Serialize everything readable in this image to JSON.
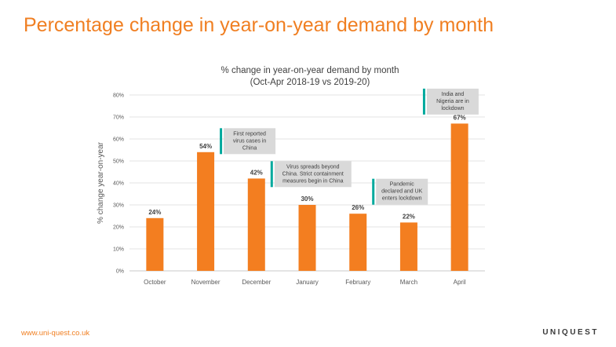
{
  "slide": {
    "title": "Percentage change in year-on-year demand by month"
  },
  "chart_data": {
    "type": "bar",
    "title": "% change in year-on-year demand by month",
    "subtitle": "(Oct-Apr 2018-19 vs 2019-20)",
    "ylabel": "% change year-on-year",
    "xlabel": "",
    "categories": [
      "October",
      "November",
      "December",
      "January",
      "February",
      "March",
      "April"
    ],
    "values": [
      24,
      54,
      42,
      30,
      26,
      22,
      67
    ],
    "data_labels": [
      "24%",
      "54%",
      "42%",
      "30%",
      "26%",
      "22%",
      "67%"
    ],
    "ylim": [
      0,
      80
    ],
    "yticks": [
      0,
      10,
      20,
      30,
      40,
      50,
      60,
      70,
      80
    ],
    "ytick_labels": [
      "0%",
      "10%",
      "20%",
      "30%",
      "40%",
      "50%",
      "60%",
      "70%",
      "80%"
    ],
    "grid": true,
    "legend": "none",
    "bar_color": "#f37e20",
    "annotations": [
      {
        "after_category": "November",
        "at_value": 59,
        "lines": [
          "First reported",
          "virus cases in",
          "China"
        ]
      },
      {
        "after_category": "December",
        "at_value": 44,
        "lines": [
          "Virus spreads beyond",
          "China. Strict containment",
          "measures begin in China"
        ]
      },
      {
        "after_category": "February",
        "at_value": 36,
        "lines": [
          "Pandemic",
          "declared and UK",
          "enters lockdown"
        ]
      },
      {
        "after_category": "March",
        "at_value": 77,
        "lines": [
          "India and",
          "Nigeria are in",
          "lockdown"
        ]
      }
    ],
    "annotation_colors": {
      "marker": "#00a99d",
      "box": "#d9d9d9"
    }
  },
  "footer": {
    "url": "www.uni-quest.co.uk",
    "logo": "UNIQUEST"
  }
}
